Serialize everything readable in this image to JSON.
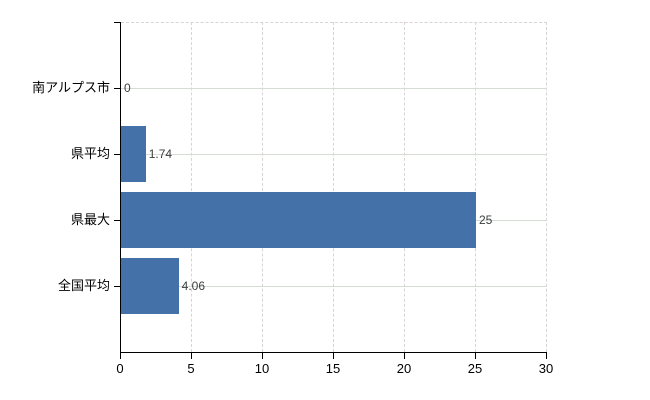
{
  "chart_data": {
    "type": "bar",
    "orientation": "horizontal",
    "title": "",
    "xlabel": "",
    "ylabel": "",
    "categories": [
      "南アルプス市",
      "県平均",
      "県最大",
      "全国平均"
    ],
    "values": [
      0,
      1.74,
      25,
      4.06
    ],
    "value_labels": [
      "0",
      "1.74",
      "25",
      "4.06"
    ],
    "xlim": [
      0,
      30
    ],
    "x_ticks": [
      0,
      5,
      10,
      15,
      20,
      25,
      30
    ],
    "x_tick_labels": [
      "0",
      "5",
      "10",
      "15",
      "20",
      "25",
      "30"
    ],
    "grid": true,
    "legend": "none",
    "bar_color": "#4472a8",
    "axis_color": "#000000",
    "grid_color_horizontal": "#d4dcd4",
    "grid_color_vertical": "#d9d2d6",
    "category_text_color": "#000000",
    "value_text_color": "#3d3d3d"
  }
}
